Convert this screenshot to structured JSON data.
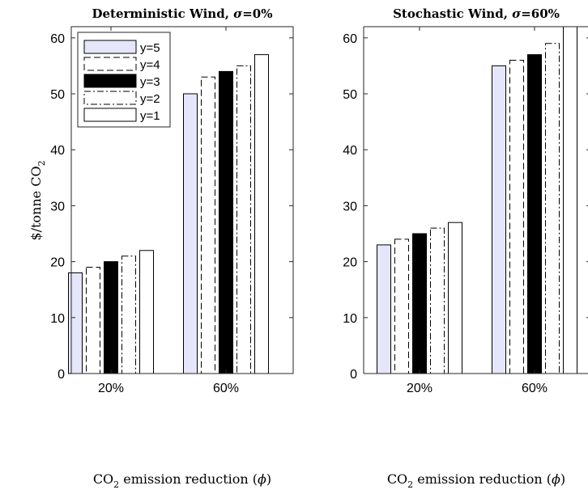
{
  "chart_data": [
    {
      "type": "bar",
      "title": "Deterministic Wind, σ=0%",
      "title_main": "Deterministic Wind, ",
      "title_sigma": "σ",
      "title_tail": "=0%",
      "ylabel": "$/tonne CO₂",
      "ylabel_main": "$/tonne CO",
      "ylabel_sub": "2",
      "xlabel": "CO₂ emission reduction (ϕ)",
      "xlabel_main": "CO",
      "xlabel_sub": "2",
      "xlabel_rest": " emission reduction (",
      "xlabel_phi": "ϕ",
      "xlabel_close": ")",
      "categories": [
        "20%",
        "60%"
      ],
      "ylim": [
        0,
        62
      ],
      "yticks": [
        "0",
        "10",
        "20",
        "30",
        "40",
        "50",
        "60"
      ],
      "legend_position": "top-left",
      "series": [
        {
          "name": "y=5",
          "values": [
            18,
            50
          ],
          "style": "lavender",
          "color": "#e6e6fa"
        },
        {
          "name": "y=4",
          "values": [
            19,
            53
          ],
          "style": "dashed",
          "color": "#ffffff"
        },
        {
          "name": "y=3",
          "values": [
            20,
            54
          ],
          "style": "black",
          "color": "#000000"
        },
        {
          "name": "y=2",
          "values": [
            21,
            55
          ],
          "style": "dashdot",
          "color": "#ffffff"
        },
        {
          "name": "y=1",
          "values": [
            22,
            57
          ],
          "style": "white",
          "color": "#ffffff"
        }
      ]
    },
    {
      "type": "bar",
      "title": "Stochastic Wind, σ=60%",
      "title_main": "Stochastic Wind, ",
      "title_sigma": "σ",
      "title_tail": "=60%",
      "xlabel": "CO₂ emission reduction (ϕ)",
      "xlabel_main": "CO",
      "xlabel_sub": "2",
      "xlabel_rest": " emission reduction (",
      "xlabel_phi": "ϕ",
      "xlabel_close": ")",
      "categories": [
        "20%",
        "60%"
      ],
      "ylim": [
        0,
        62
      ],
      "yticks": [
        "0",
        "10",
        "20",
        "30",
        "40",
        "50",
        "60"
      ],
      "series": [
        {
          "name": "y=5",
          "values": [
            23,
            55
          ],
          "style": "lavender",
          "color": "#e6e6fa"
        },
        {
          "name": "y=4",
          "values": [
            24,
            56
          ],
          "style": "dashed",
          "color": "#ffffff"
        },
        {
          "name": "y=3",
          "values": [
            25,
            57
          ],
          "style": "black",
          "color": "#000000"
        },
        {
          "name": "y=2",
          "values": [
            26,
            59
          ],
          "style": "dashdot",
          "color": "#ffffff"
        },
        {
          "name": "y=1",
          "values": [
            27,
            62
          ],
          "style": "white",
          "color": "#ffffff"
        }
      ]
    }
  ]
}
